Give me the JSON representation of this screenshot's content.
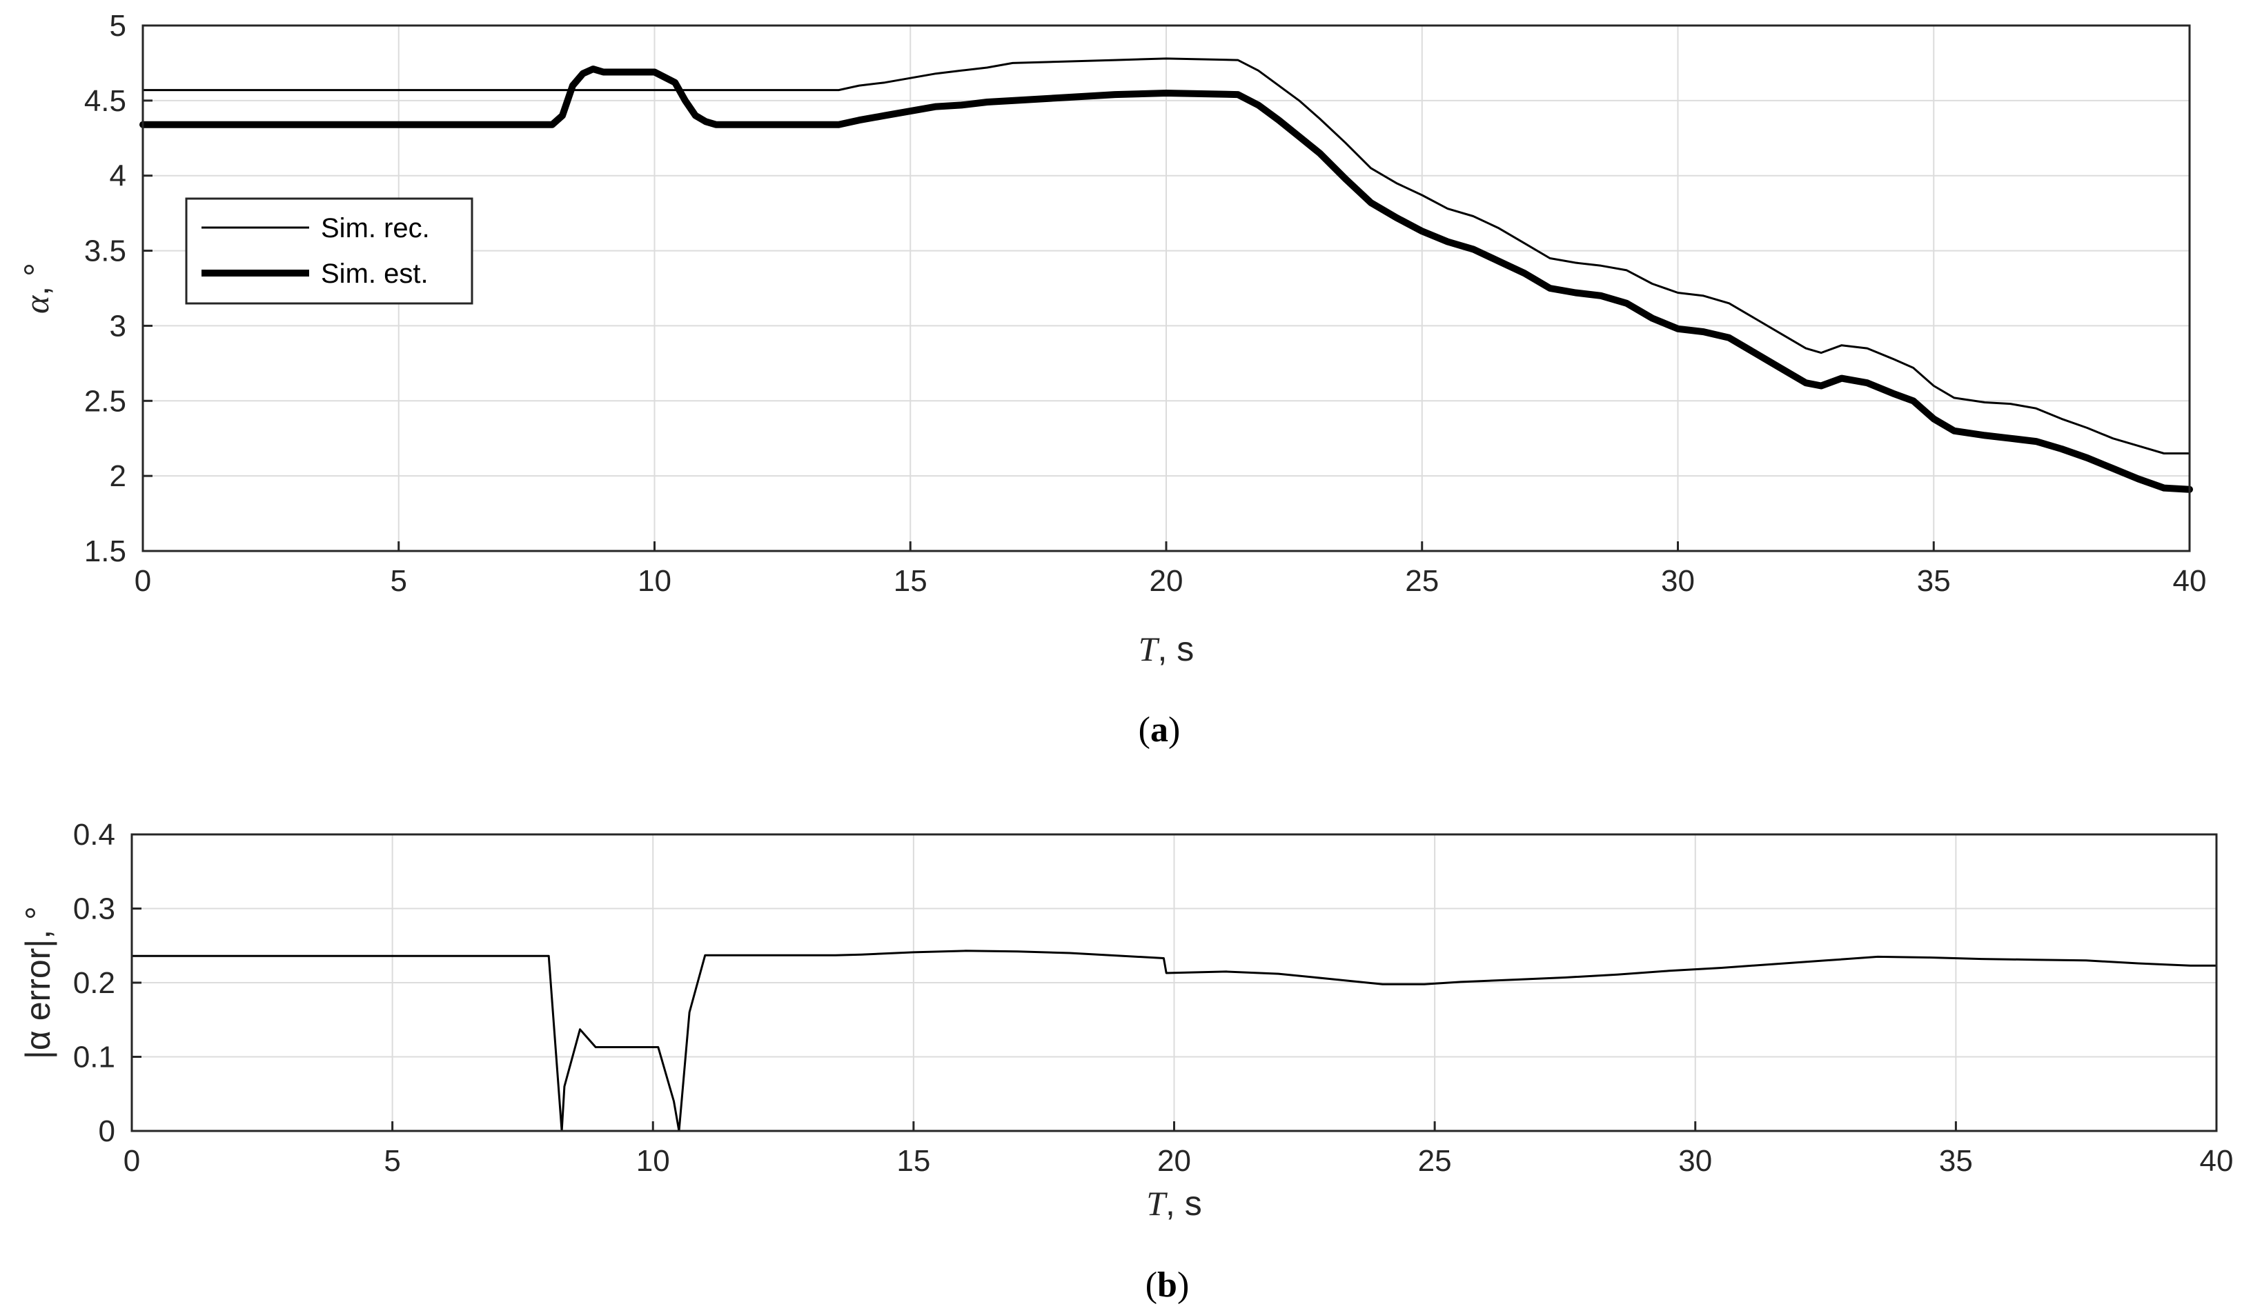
{
  "chart_data": [
    {
      "type": "line",
      "panel": "a",
      "caption": "(a)",
      "caption_letter": "a",
      "xlabel_var": "T",
      "xlabel_unit": ", s",
      "ylabel_var": "α",
      "ylabel_unit": ", °",
      "xlim": [
        0,
        40
      ],
      "ylim": [
        1.5,
        5
      ],
      "xticks": [
        0,
        5,
        10,
        15,
        20,
        25,
        30,
        35,
        40
      ],
      "yticks": [
        1.5,
        2,
        2.5,
        3,
        3.5,
        4,
        4.5,
        5
      ],
      "ytick_labels": [
        "1.5",
        "2",
        "2.5",
        "3",
        "3.5",
        "4",
        "4.5",
        "5"
      ],
      "grid": true,
      "legend_position": "upper-left",
      "series": [
        {
          "name": "Sim. rec.",
          "color": "#000000",
          "weight": "thin",
          "x": [
            0,
            13.6,
            14.0,
            14.5,
            15.0,
            15.5,
            16.0,
            16.5,
            17.0,
            18.0,
            19.0,
            20.0,
            21.4,
            21.8,
            22.2,
            22.6,
            23.0,
            23.5,
            24.0,
            24.5,
            25.0,
            25.5,
            26.0,
            26.5,
            27.0,
            27.5,
            28.0,
            28.5,
            29.0,
            29.5,
            30.0,
            30.5,
            31.0,
            31.5,
            32.0,
            32.5,
            32.8,
            33.2,
            33.7,
            34.2,
            34.6,
            35.0,
            35.4,
            36.0,
            36.5,
            37.0,
            37.5,
            38.0,
            38.5,
            39.0,
            39.5,
            40.0
          ],
          "y": [
            4.57,
            4.57,
            4.6,
            4.62,
            4.65,
            4.68,
            4.7,
            4.72,
            4.75,
            4.76,
            4.77,
            4.78,
            4.77,
            4.7,
            4.6,
            4.5,
            4.38,
            4.22,
            4.05,
            3.95,
            3.87,
            3.78,
            3.73,
            3.65,
            3.55,
            3.45,
            3.42,
            3.4,
            3.37,
            3.28,
            3.22,
            3.2,
            3.15,
            3.05,
            2.95,
            2.85,
            2.82,
            2.87,
            2.85,
            2.78,
            2.72,
            2.6,
            2.52,
            2.49,
            2.48,
            2.45,
            2.38,
            2.32,
            2.25,
            2.2,
            2.15,
            2.15
          ]
        },
        {
          "name": "Sim. est.",
          "color": "#000000",
          "weight": "thick",
          "x": [
            0,
            8.0,
            8.2,
            8.4,
            8.6,
            8.8,
            9.0,
            10.0,
            10.4,
            10.6,
            10.8,
            11.0,
            11.2,
            12.0,
            13.6,
            14.0,
            14.5,
            15.0,
            15.5,
            16.0,
            16.5,
            17.0,
            18.0,
            19.0,
            20.0,
            21.4,
            21.8,
            22.2,
            22.6,
            23.0,
            23.5,
            24.0,
            24.5,
            25.0,
            25.5,
            26.0,
            26.5,
            27.0,
            27.5,
            28.0,
            28.5,
            29.0,
            29.5,
            30.0,
            30.5,
            31.0,
            31.5,
            32.0,
            32.5,
            32.8,
            33.2,
            33.7,
            34.2,
            34.6,
            35.0,
            35.4,
            36.0,
            36.5,
            37.0,
            37.5,
            38.0,
            38.5,
            39.0,
            39.5,
            40.0
          ],
          "y": [
            4.34,
            4.34,
            4.4,
            4.6,
            4.68,
            4.71,
            4.69,
            4.69,
            4.62,
            4.5,
            4.4,
            4.36,
            4.34,
            4.34,
            4.34,
            4.37,
            4.4,
            4.43,
            4.46,
            4.47,
            4.49,
            4.5,
            4.52,
            4.54,
            4.55,
            4.54,
            4.47,
            4.37,
            4.26,
            4.15,
            3.98,
            3.82,
            3.72,
            3.63,
            3.56,
            3.51,
            3.43,
            3.35,
            3.25,
            3.22,
            3.2,
            3.15,
            3.05,
            2.98,
            2.96,
            2.92,
            2.82,
            2.72,
            2.62,
            2.6,
            2.65,
            2.62,
            2.55,
            2.5,
            2.38,
            2.3,
            2.27,
            2.25,
            2.23,
            2.18,
            2.12,
            2.05,
            1.98,
            1.92,
            1.91
          ]
        }
      ]
    },
    {
      "type": "line",
      "panel": "b",
      "caption": "(b)",
      "caption_letter": "b",
      "xlabel_var": "T",
      "xlabel_unit": ", s",
      "ylabel": "|α error|, °",
      "xlim": [
        0,
        40
      ],
      "ylim": [
        0,
        0.4
      ],
      "xticks": [
        0,
        5,
        10,
        15,
        20,
        25,
        30,
        35,
        40
      ],
      "yticks": [
        0,
        0.1,
        0.2,
        0.3,
        0.4
      ],
      "ytick_labels": [
        "0",
        "0.1",
        "0.2",
        "0.3",
        "0.4"
      ],
      "grid": true,
      "series": [
        {
          "color": "#000000",
          "weight": "thin",
          "x": [
            0,
            8.0,
            8.25,
            8.3,
            8.6,
            8.9,
            10.1,
            10.4,
            10.5,
            10.7,
            11.0,
            13.5,
            14.0,
            15.0,
            16.0,
            17.0,
            18.0,
            19.8,
            19.85,
            21.0,
            22.0,
            23.0,
            24.0,
            24.8,
            25.5,
            26.5,
            27.5,
            28.5,
            29.5,
            30.5,
            31.5,
            32.5,
            33.5,
            34.5,
            35.5,
            36.5,
            37.5,
            38.5,
            39.5,
            40.0
          ],
          "y": [
            0.236,
            0.236,
            0.0,
            0.06,
            0.137,
            0.113,
            0.113,
            0.04,
            0.0,
            0.16,
            0.237,
            0.237,
            0.238,
            0.241,
            0.243,
            0.242,
            0.24,
            0.233,
            0.213,
            0.215,
            0.212,
            0.205,
            0.198,
            0.198,
            0.201,
            0.204,
            0.207,
            0.211,
            0.216,
            0.22,
            0.225,
            0.23,
            0.235,
            0.234,
            0.232,
            0.231,
            0.23,
            0.226,
            0.223,
            0.223
          ]
        }
      ]
    }
  ]
}
